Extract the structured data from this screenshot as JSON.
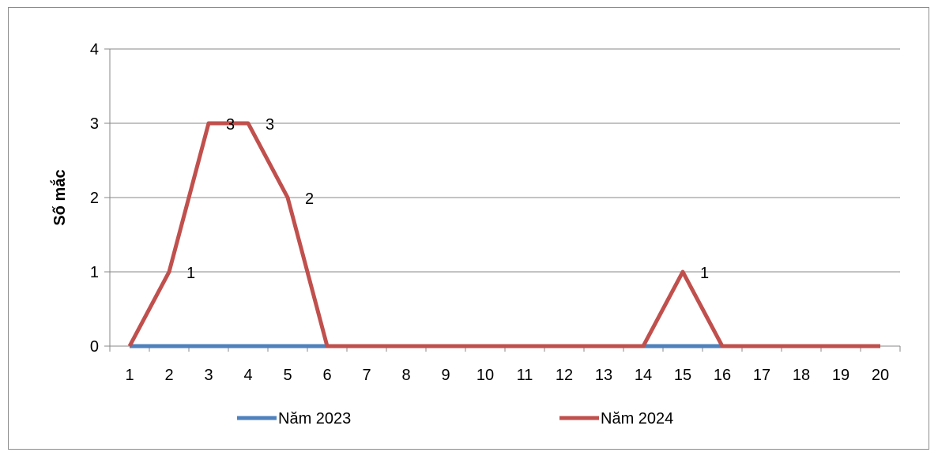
{
  "chart_data": {
    "type": "line",
    "ylabel": "Số mắc",
    "xlabel": "",
    "title": "",
    "x": [
      1,
      2,
      3,
      4,
      5,
      6,
      7,
      8,
      9,
      10,
      11,
      12,
      13,
      14,
      15,
      16,
      17,
      18,
      19,
      20
    ],
    "ylim": [
      0,
      4
    ],
    "yticks": [
      0,
      1,
      2,
      3,
      4
    ],
    "grid": true,
    "legend_position": "bottom",
    "series": [
      {
        "name": "Năm 2023",
        "color": "#4f81bd",
        "values": [
          0,
          0,
          0,
          0,
          0,
          0,
          0,
          0,
          0,
          0,
          0,
          0,
          0,
          0,
          0,
          0,
          0,
          0,
          0,
          0
        ]
      },
      {
        "name": "Năm 2024",
        "color": "#c0504d",
        "values": [
          0,
          1,
          3,
          3,
          2,
          0,
          0,
          0,
          0,
          0,
          0,
          0,
          0,
          0,
          1,
          0,
          0,
          0,
          0,
          0
        ],
        "data_labels": [
          {
            "x": 2,
            "text": "1"
          },
          {
            "x": 3,
            "text": "3"
          },
          {
            "x": 4,
            "text": "3"
          },
          {
            "x": 5,
            "text": "2"
          },
          {
            "x": 15,
            "text": "1"
          }
        ]
      }
    ]
  }
}
